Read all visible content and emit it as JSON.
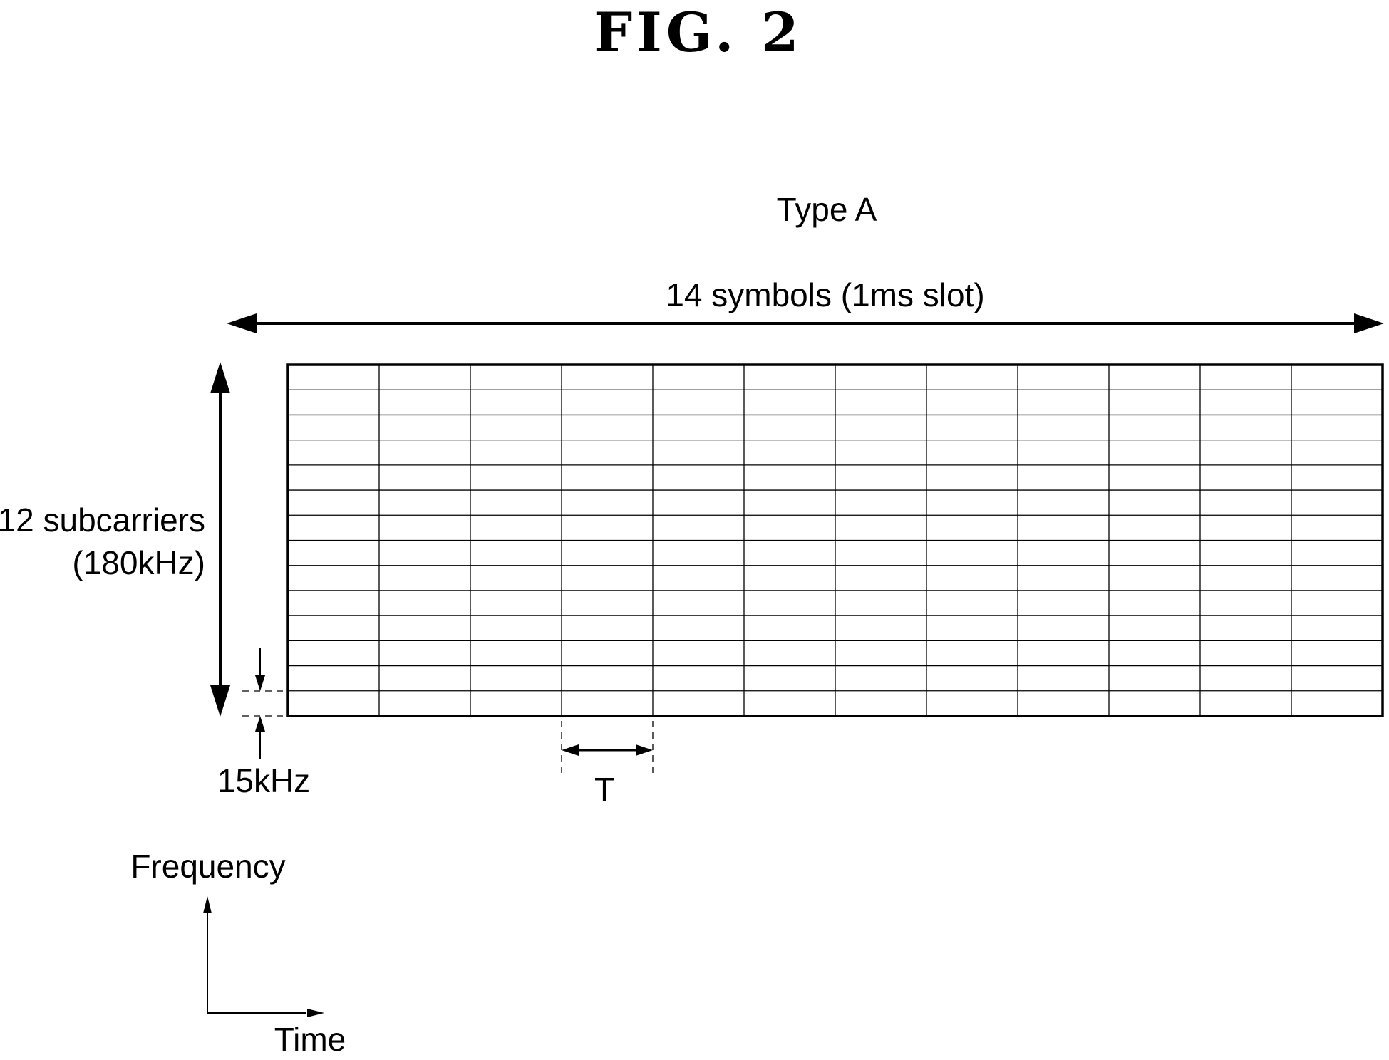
{
  "figure": {
    "title": "FIG. 2",
    "type_label": "Type A",
    "symbols_label": "14 symbols (1ms slot)",
    "subcarriers_label_line1": "12 subcarriers",
    "subcarriers_label_line2": "(180kHz)",
    "spacing_label": "15kHz",
    "period_label": "T",
    "frequency_label": "Frequency",
    "time_label": "Time"
  },
  "grid": {
    "columns": 12,
    "rows": 14,
    "column_label": "symbol",
    "row_label": "subcarrier"
  }
}
